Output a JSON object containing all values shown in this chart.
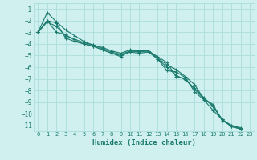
{
  "xlabel": "Humidex (Indice chaleur)",
  "ylabel": "",
  "bg_color": "#cff0ee",
  "grid_color": "#aadddb",
  "line_color": "#1a7a6e",
  "xlim": [
    -0.5,
    23.5
  ],
  "ylim": [
    -11.5,
    -0.5
  ],
  "yticks": [
    -1,
    -2,
    -3,
    -4,
    -5,
    -6,
    -7,
    -8,
    -9,
    -10,
    -11
  ],
  "xticks": [
    0,
    1,
    2,
    3,
    4,
    5,
    6,
    7,
    8,
    9,
    10,
    11,
    12,
    13,
    14,
    15,
    16,
    17,
    18,
    19,
    20,
    21,
    22,
    23
  ],
  "lines": [
    {
      "x": [
        0,
        1,
        2,
        3,
        4,
        5,
        6,
        7,
        8,
        9,
        10,
        11,
        12,
        13,
        14,
        15,
        16,
        17,
        18,
        19,
        20,
        21,
        22,
        23
      ],
      "y": [
        -3.0,
        -1.3,
        -2.1,
        -2.8,
        -3.3,
        -3.8,
        -4.1,
        -4.3,
        -4.6,
        -4.8,
        -4.5,
        -4.6,
        -4.6,
        -5.3,
        -6.3,
        -6.4,
        -6.9,
        -8.1,
        -8.8,
        -9.7,
        -10.5,
        -11.1,
        -11.3,
        null
      ]
    },
    {
      "x": [
        0,
        1,
        2,
        3,
        4,
        5,
        6,
        7,
        8,
        9,
        10,
        11,
        12,
        13,
        14,
        15,
        16,
        17,
        18,
        19,
        20,
        21,
        22,
        23
      ],
      "y": [
        -3.0,
        -2.0,
        -2.2,
        -3.5,
        -3.8,
        -4.0,
        -4.2,
        -4.5,
        -4.8,
        -5.0,
        -4.7,
        -4.8,
        -4.7,
        -5.3,
        -6.0,
        -6.7,
        -7.1,
        -7.8,
        -8.6,
        -9.4,
        -10.5,
        -11.0,
        -11.3,
        null
      ]
    },
    {
      "x": [
        0,
        1,
        2,
        3,
        4,
        5,
        6,
        7,
        8,
        9,
        10,
        11,
        12,
        13,
        14,
        15,
        16,
        17,
        18,
        19,
        20,
        21,
        22,
        23
      ],
      "y": [
        -3.0,
        -2.1,
        -2.5,
        -3.3,
        -3.6,
        -3.9,
        -4.1,
        -4.4,
        -4.7,
        -4.9,
        -4.6,
        -4.6,
        -4.6,
        -5.2,
        -5.8,
        -6.2,
        -6.8,
        -7.5,
        -8.7,
        -9.2,
        -10.6,
        -11.0,
        -11.2,
        null
      ]
    },
    {
      "x": [
        0,
        1,
        2,
        3,
        4,
        5,
        6,
        7,
        8,
        9,
        10,
        11,
        12,
        13,
        14,
        15,
        16,
        17,
        18,
        19,
        20,
        21,
        22,
        23
      ],
      "y": [
        -3.0,
        -2.0,
        -3.0,
        -3.2,
        -3.7,
        -4.0,
        -4.2,
        -4.5,
        -4.8,
        -5.1,
        -4.6,
        -4.7,
        -4.6,
        -5.1,
        -5.6,
        -6.8,
        -7.0,
        -7.9,
        -8.7,
        -9.3,
        -10.5,
        -11.1,
        -11.3,
        null
      ]
    }
  ]
}
